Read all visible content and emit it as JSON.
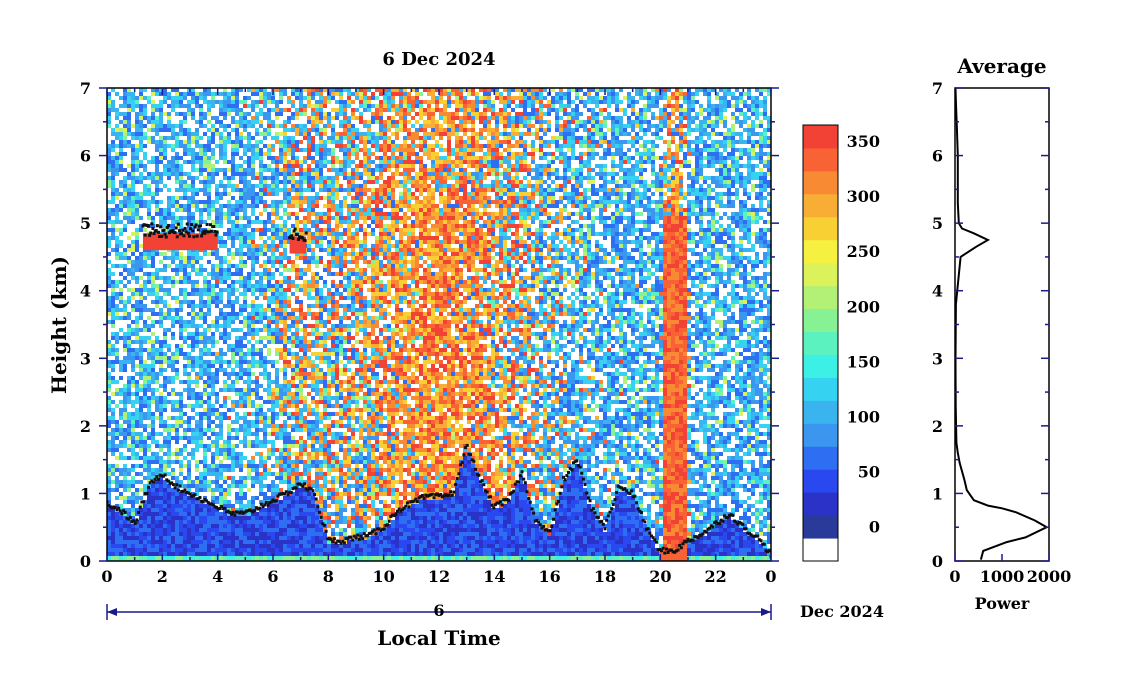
{
  "chart_data": [
    {
      "type": "heatmap",
      "title": "6 Dec 2024",
      "xlabel": "Local Time",
      "ylabel": "Height (km)",
      "xlim": [
        0,
        24
      ],
      "ylim": [
        0,
        7
      ],
      "x_ticks": [
        "0",
        "2",
        "4",
        "6",
        "8",
        "10",
        "12",
        "14",
        "16",
        "18",
        "20",
        "22",
        "0"
      ],
      "y_ticks": [
        "0",
        "1",
        "2",
        "3",
        "4",
        "5",
        "6",
        "7"
      ],
      "date_axis": {
        "day_label": "6",
        "month_label": "Dec 2024"
      },
      "colorbar": {
        "labels": [
          "0",
          "50",
          "100",
          "150",
          "200",
          "250",
          "300",
          "350"
        ],
        "colors": [
          "#ffffff",
          "#2a3a9a",
          "#2a32c8",
          "#2a48f0",
          "#2e6ef2",
          "#3a96ee",
          "#3ab4ee",
          "#36d2f2",
          "#3cf0e6",
          "#5cf2c0",
          "#86f294",
          "#b2f076",
          "#dcf25a",
          "#f6f040",
          "#f8d034",
          "#f8ae34",
          "#f88a34",
          "#f86234",
          "#f24236"
        ]
      },
      "cloud_layers": [
        {
          "start": 1.3,
          "end": 4.0,
          "height": 4.85
        },
        {
          "start": 6.6,
          "end": 7.2,
          "height": 4.8
        }
      ],
      "boundary_layer_top": [
        [
          0.0,
          0.85
        ],
        [
          0.5,
          0.75
        ],
        [
          1.0,
          0.55
        ],
        [
          1.5,
          1.1
        ],
        [
          2.0,
          1.3
        ],
        [
          2.5,
          1.1
        ],
        [
          3.0,
          1.0
        ],
        [
          3.5,
          0.9
        ],
        [
          4.0,
          0.8
        ],
        [
          4.5,
          0.7
        ],
        [
          5.0,
          0.7
        ],
        [
          5.5,
          0.8
        ],
        [
          6.0,
          0.9
        ],
        [
          6.5,
          1.0
        ],
        [
          7.0,
          1.15
        ],
        [
          7.5,
          1.0
        ],
        [
          8.0,
          0.3
        ],
        [
          8.5,
          0.3
        ],
        [
          9.0,
          0.35
        ],
        [
          9.5,
          0.38
        ],
        [
          10.0,
          0.5
        ],
        [
          10.5,
          0.75
        ],
        [
          11.0,
          0.85
        ],
        [
          11.5,
          0.95
        ],
        [
          12.0,
          0.95
        ],
        [
          12.5,
          1.0
        ],
        [
          13.0,
          1.7
        ],
        [
          13.5,
          1.2
        ],
        [
          14.0,
          0.8
        ],
        [
          14.5,
          0.9
        ],
        [
          15.0,
          1.3
        ],
        [
          15.5,
          0.6
        ],
        [
          16.0,
          0.4
        ],
        [
          16.5,
          1.2
        ],
        [
          17.0,
          1.5
        ],
        [
          17.5,
          0.8
        ],
        [
          18.0,
          0.5
        ],
        [
          18.5,
          1.1
        ],
        [
          19.0,
          1.0
        ],
        [
          19.5,
          0.5
        ],
        [
          20.0,
          0.15
        ],
        [
          20.5,
          0.15
        ],
        [
          21.0,
          0.3
        ],
        [
          21.5,
          0.4
        ],
        [
          22.0,
          0.55
        ],
        [
          22.5,
          0.7
        ],
        [
          23.0,
          0.5
        ],
        [
          23.5,
          0.35
        ],
        [
          24.0,
          0.1
        ]
      ]
    },
    {
      "type": "line",
      "title": "Average",
      "xlabel": "Power",
      "xlim": [
        0,
        2000
      ],
      "ylim": [
        0,
        7
      ],
      "x_ticks": [
        "0",
        "1000",
        "2000"
      ],
      "y_ticks": [
        "0",
        "1",
        "2",
        "3",
        "4",
        "5",
        "6",
        "7"
      ],
      "x": [
        550,
        600,
        1100,
        1500,
        1950,
        1700,
        1300,
        1000,
        700,
        400,
        250,
        200,
        100,
        60,
        30,
        15,
        10,
        20,
        120,
        450,
        700,
        400,
        150,
        80,
        60,
        60,
        60,
        40,
        20,
        10
      ],
      "y": [
        0.02,
        0.15,
        0.28,
        0.35,
        0.5,
        0.6,
        0.72,
        0.78,
        0.82,
        0.9,
        1.05,
        1.2,
        1.45,
        1.6,
        1.75,
        2.3,
        3.0,
        3.8,
        4.5,
        4.65,
        4.75,
        4.85,
        4.92,
        5.0,
        5.3,
        5.6,
        6.0,
        6.4,
        6.8,
        7.0
      ]
    }
  ]
}
